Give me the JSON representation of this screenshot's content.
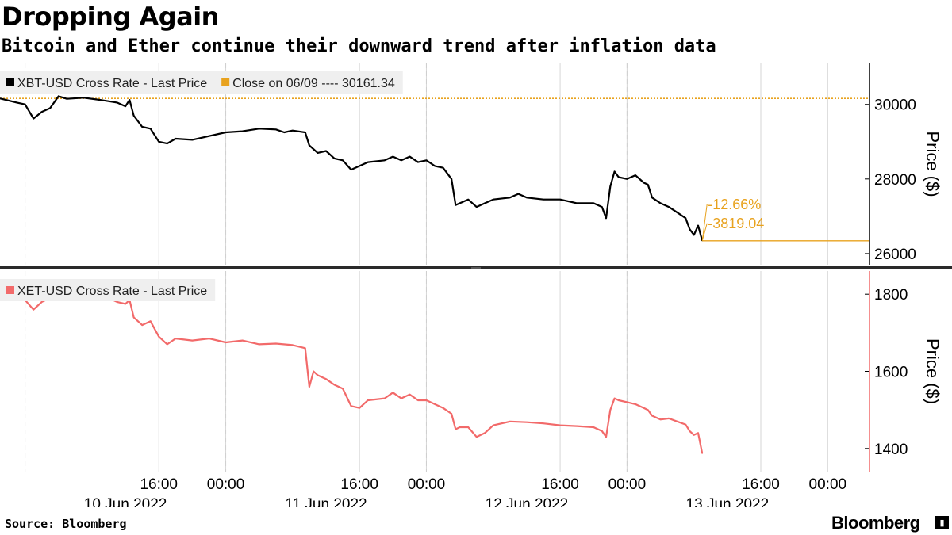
{
  "header": {
    "title": "Dropping Again",
    "subtitle": "Bitcoin and Ether continue their downward trend after inflation data"
  },
  "footer": {
    "source": "Source: Bloomberg",
    "brand": "Bloomberg",
    "brand_icon": "bloomberg-terminal-icon"
  },
  "chart_data": [
    {
      "type": "line",
      "panel": "top",
      "series": [
        {
          "name": "XBT-USD Cross Rate - Last Price",
          "color": "#000000"
        },
        {
          "name": "Close on 06/09 ---- 30161.34",
          "color": "#e8a21e"
        }
      ],
      "reference_line": {
        "value": 30161.34,
        "color": "#e8a21e"
      },
      "annotations": [
        {
          "text": "-12.66%",
          "color": "#e8a21e"
        },
        {
          "text": "-3819.04",
          "color": "#e8a21e"
        }
      ],
      "last_value": 26342.3,
      "ylabel": "Price ($)",
      "ylim": [
        25700,
        31100
      ],
      "yticks": [
        "26000",
        "28000",
        "30000"
      ],
      "points": [
        [
          "2022-06-09T21:00",
          30161
        ],
        [
          "2022-06-09T23:00",
          30050
        ],
        [
          "2022-06-10T00:00",
          30000
        ],
        [
          "2022-06-10T01:00",
          29620
        ],
        [
          "2022-06-10T02:00",
          29800
        ],
        [
          "2022-06-10T03:00",
          29900
        ],
        [
          "2022-06-10T04:00",
          30220
        ],
        [
          "2022-06-10T05:00",
          30150
        ],
        [
          "2022-06-10T07:00",
          30180
        ],
        [
          "2022-06-10T09:00",
          30120
        ],
        [
          "2022-06-10T11:00",
          30050
        ],
        [
          "2022-06-10T12:00",
          29950
        ],
        [
          "2022-06-10T12:30",
          30120
        ],
        [
          "2022-06-10T13:00",
          29700
        ],
        [
          "2022-06-10T14:00",
          29400
        ],
        [
          "2022-06-10T15:00",
          29350
        ],
        [
          "2022-06-10T16:00",
          29000
        ],
        [
          "2022-06-10T17:00",
          28950
        ],
        [
          "2022-06-10T18:00",
          29080
        ],
        [
          "2022-06-10T20:00",
          29050
        ],
        [
          "2022-06-10T22:00",
          29150
        ],
        [
          "2022-06-11T00:00",
          29250
        ],
        [
          "2022-06-11T02:00",
          29280
        ],
        [
          "2022-06-11T04:00",
          29350
        ],
        [
          "2022-06-11T06:00",
          29330
        ],
        [
          "2022-06-11T07:00",
          29250
        ],
        [
          "2022-06-11T08:00",
          29300
        ],
        [
          "2022-06-11T09:30",
          29250
        ],
        [
          "2022-06-11T10:00",
          28900
        ],
        [
          "2022-06-11T11:00",
          28700
        ],
        [
          "2022-06-11T12:00",
          28750
        ],
        [
          "2022-06-11T13:00",
          28550
        ],
        [
          "2022-06-11T14:00",
          28500
        ],
        [
          "2022-06-11T15:00",
          28250
        ],
        [
          "2022-06-11T16:00",
          28350
        ],
        [
          "2022-06-11T17:00",
          28450
        ],
        [
          "2022-06-11T19:00",
          28500
        ],
        [
          "2022-06-11T20:00",
          28600
        ],
        [
          "2022-06-11T21:00",
          28500
        ],
        [
          "2022-06-11T22:00",
          28600
        ],
        [
          "2022-06-11T23:00",
          28450
        ],
        [
          "2022-06-12T00:00",
          28500
        ],
        [
          "2022-06-12T01:00",
          28350
        ],
        [
          "2022-06-12T02:00",
          28300
        ],
        [
          "2022-06-12T03:00",
          28000
        ],
        [
          "2022-06-12T03:30",
          27300
        ],
        [
          "2022-06-12T04:00",
          27350
        ],
        [
          "2022-06-12T05:00",
          27450
        ],
        [
          "2022-06-12T06:00",
          27250
        ],
        [
          "2022-06-12T07:00",
          27350
        ],
        [
          "2022-06-12T08:00",
          27450
        ],
        [
          "2022-06-12T10:00",
          27500
        ],
        [
          "2022-06-12T11:00",
          27600
        ],
        [
          "2022-06-12T12:00",
          27500
        ],
        [
          "2022-06-12T14:00",
          27450
        ],
        [
          "2022-06-12T16:00",
          27450
        ],
        [
          "2022-06-12T18:00",
          27350
        ],
        [
          "2022-06-12T20:00",
          27350
        ],
        [
          "2022-06-12T21:00",
          27250
        ],
        [
          "2022-06-12T21:30",
          26950
        ],
        [
          "2022-06-12T22:00",
          27800
        ],
        [
          "2022-06-12T22:30",
          28200
        ],
        [
          "2022-06-12T23:00",
          28050
        ],
        [
          "2022-06-13T00:00",
          28000
        ],
        [
          "2022-06-13T01:00",
          28100
        ],
        [
          "2022-06-13T02:00",
          27900
        ],
        [
          "2022-06-13T02:30",
          27850
        ],
        [
          "2022-06-13T03:00",
          27500
        ],
        [
          "2022-06-13T04:00",
          27350
        ],
        [
          "2022-06-13T05:00",
          27250
        ],
        [
          "2022-06-13T06:00",
          27100
        ],
        [
          "2022-06-13T07:00",
          26950
        ],
        [
          "2022-06-13T07:30",
          26650
        ],
        [
          "2022-06-13T08:00",
          26500
        ],
        [
          "2022-06-13T08:30",
          26750
        ],
        [
          "2022-06-13T09:00",
          26342
        ]
      ]
    },
    {
      "type": "line",
      "panel": "bottom",
      "series": [
        {
          "name": "XET-USD Cross Rate - Last Price",
          "color": "#f26a6a"
        }
      ],
      "ylabel": "Price ($)",
      "ylim": [
        1340,
        1860
      ],
      "yticks": [
        "1400",
        "1600",
        "1800"
      ],
      "points": [
        [
          "2022-06-09T21:00",
          1795
        ],
        [
          "2022-06-09T23:00",
          1790
        ],
        [
          "2022-06-10T00:00",
          1785
        ],
        [
          "2022-06-10T01:00",
          1760
        ],
        [
          "2022-06-10T02:00",
          1780
        ],
        [
          "2022-06-10T03:00",
          1790
        ],
        [
          "2022-06-10T04:00",
          1800
        ],
        [
          "2022-06-10T06:00",
          1800
        ],
        [
          "2022-06-10T08:00",
          1795
        ],
        [
          "2022-06-10T10:00",
          1790
        ],
        [
          "2022-06-10T11:00",
          1780
        ],
        [
          "2022-06-10T12:00",
          1775
        ],
        [
          "2022-06-10T12:30",
          1785
        ],
        [
          "2022-06-10T13:00",
          1740
        ],
        [
          "2022-06-10T14:00",
          1720
        ],
        [
          "2022-06-10T15:00",
          1730
        ],
        [
          "2022-06-10T16:00",
          1690
        ],
        [
          "2022-06-10T17:00",
          1670
        ],
        [
          "2022-06-10T18:00",
          1685
        ],
        [
          "2022-06-10T20:00",
          1680
        ],
        [
          "2022-06-10T22:00",
          1685
        ],
        [
          "2022-06-11T00:00",
          1675
        ],
        [
          "2022-06-11T02:00",
          1680
        ],
        [
          "2022-06-11T04:00",
          1670
        ],
        [
          "2022-06-11T06:00",
          1672
        ],
        [
          "2022-06-11T08:00",
          1668
        ],
        [
          "2022-06-11T09:30",
          1660
        ],
        [
          "2022-06-11T10:00",
          1560
        ],
        [
          "2022-06-11T10:30",
          1600
        ],
        [
          "2022-06-11T11:00",
          1590
        ],
        [
          "2022-06-11T12:00",
          1580
        ],
        [
          "2022-06-11T13:00",
          1565
        ],
        [
          "2022-06-11T14:00",
          1555
        ],
        [
          "2022-06-11T15:00",
          1510
        ],
        [
          "2022-06-11T16:00",
          1505
        ],
        [
          "2022-06-11T17:00",
          1525
        ],
        [
          "2022-06-11T19:00",
          1530
        ],
        [
          "2022-06-11T20:00",
          1545
        ],
        [
          "2022-06-11T21:00",
          1530
        ],
        [
          "2022-06-11T22:00",
          1540
        ],
        [
          "2022-06-11T23:00",
          1525
        ],
        [
          "2022-06-12T00:00",
          1525
        ],
        [
          "2022-06-12T01:00",
          1515
        ],
        [
          "2022-06-12T02:00",
          1505
        ],
        [
          "2022-06-12T03:00",
          1490
        ],
        [
          "2022-06-12T03:30",
          1450
        ],
        [
          "2022-06-12T04:00",
          1455
        ],
        [
          "2022-06-12T05:00",
          1455
        ],
        [
          "2022-06-12T06:00",
          1430
        ],
        [
          "2022-06-12T07:00",
          1440
        ],
        [
          "2022-06-12T08:00",
          1460
        ],
        [
          "2022-06-12T10:00",
          1470
        ],
        [
          "2022-06-12T12:00",
          1468
        ],
        [
          "2022-06-12T14:00",
          1465
        ],
        [
          "2022-06-12T16:00",
          1460
        ],
        [
          "2022-06-12T18:00",
          1458
        ],
        [
          "2022-06-12T20:00",
          1455
        ],
        [
          "2022-06-12T21:00",
          1445
        ],
        [
          "2022-06-12T21:30",
          1430
        ],
        [
          "2022-06-12T22:00",
          1500
        ],
        [
          "2022-06-12T22:30",
          1530
        ],
        [
          "2022-06-12T23:00",
          1525
        ],
        [
          "2022-06-13T00:00",
          1520
        ],
        [
          "2022-06-13T01:00",
          1515
        ],
        [
          "2022-06-13T02:00",
          1505
        ],
        [
          "2022-06-13T02:30",
          1500
        ],
        [
          "2022-06-13T03:00",
          1485
        ],
        [
          "2022-06-13T04:00",
          1475
        ],
        [
          "2022-06-13T05:00",
          1478
        ],
        [
          "2022-06-13T06:00",
          1470
        ],
        [
          "2022-06-13T07:00",
          1462
        ],
        [
          "2022-06-13T07:30",
          1445
        ],
        [
          "2022-06-13T08:00",
          1435
        ],
        [
          "2022-06-13T08:30",
          1440
        ],
        [
          "2022-06-13T09:00",
          1387
        ]
      ]
    }
  ],
  "x_axis": {
    "range": [
      "2022-06-09T21:00",
      "2022-06-14T05:00"
    ],
    "time_ticks": [
      {
        "at": "2022-06-10T16:00",
        "label": "16:00"
      },
      {
        "at": "2022-06-11T00:00",
        "label": "00:00"
      },
      {
        "at": "2022-06-11T16:00",
        "label": "16:00"
      },
      {
        "at": "2022-06-12T00:00",
        "label": "00:00"
      },
      {
        "at": "2022-06-12T16:00",
        "label": "16:00"
      },
      {
        "at": "2022-06-13T00:00",
        "label": "00:00"
      },
      {
        "at": "2022-06-13T16:00",
        "label": "16:00"
      },
      {
        "at": "2022-06-14T00:00",
        "label": "00:00"
      }
    ],
    "date_labels": [
      {
        "at": "2022-06-10T12:00",
        "label": "10 Jun 2022"
      },
      {
        "at": "2022-06-11T12:00",
        "label": "11 Jun 2022"
      },
      {
        "at": "2022-06-12T12:00",
        "label": "12 Jun 2022"
      },
      {
        "at": "2022-06-13T12:00",
        "label": "13 Jun 2022"
      }
    ],
    "dashed_gridlines": [
      "2022-06-10T00:00",
      "2022-06-11T00:00",
      "2022-06-12T00:00",
      "2022-06-13T00:00"
    ]
  }
}
